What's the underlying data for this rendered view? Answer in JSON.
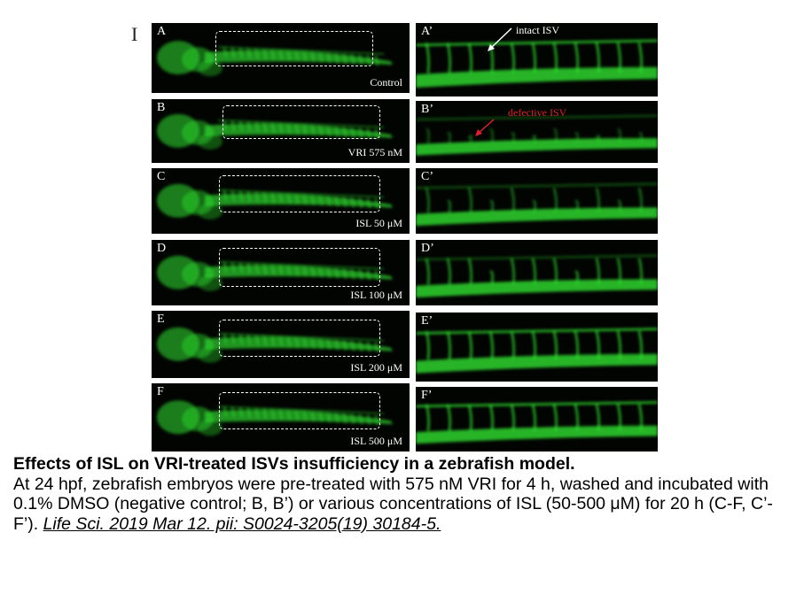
{
  "figure_label": "I",
  "rows": [
    {
      "letter": "A",
      "zoom_letter": "A’",
      "condition": "Control"
    },
    {
      "letter": "B",
      "zoom_letter": "B’",
      "condition": "VRI 575 nM"
    },
    {
      "letter": "C",
      "zoom_letter": "C’",
      "condition": "ISL 50 μM"
    },
    {
      "letter": "D",
      "zoom_letter": "D’",
      "condition": "ISL 100 μM"
    },
    {
      "letter": "E",
      "zoom_letter": "E’",
      "condition": "ISL 200 μM"
    },
    {
      "letter": "F",
      "zoom_letter": "F’",
      "condition": "ISL 500 μM"
    }
  ],
  "annotations": {
    "intact": {
      "text": "intact  ISV",
      "color": "#ffffff"
    },
    "defective": {
      "text": "defective  ISV",
      "color": "#e0202a"
    }
  },
  "colors": {
    "fluorescence": "#2ee02e",
    "background": "#020402"
  },
  "caption": {
    "title": "Effects of ISL on VRI-treated ISVs insufficiency in a zebrafish model.",
    "body": "At 24 hpf, zebrafish embryos were pre-treated with 575 nM VRI for 4 h, washed and incubated with 0.1% DMSO (negative control; B, B’) or various concentrations of ISL (50-500 μM) for 20 h (C-F, C’-F’). ",
    "reference": "Life Sci. 2019 Mar 12. pii: S0024-3205(19) 30184-5."
  }
}
